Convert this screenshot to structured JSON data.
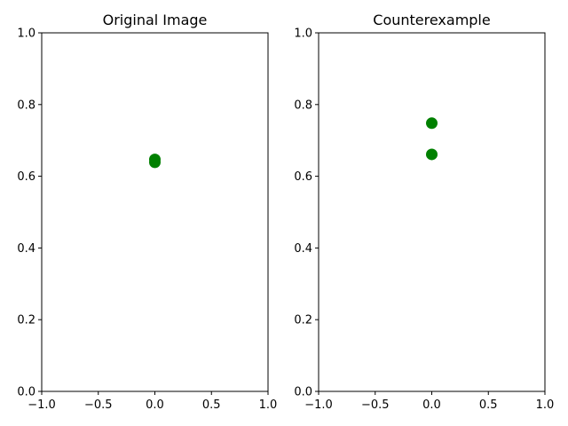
{
  "chart_data": [
    {
      "type": "scatter",
      "title": "Original Image",
      "xlim": [
        -1.0,
        1.0
      ],
      "ylim": [
        0.0,
        1.0
      ],
      "xticks": [
        "−1.0",
        "−0.5",
        "0.0",
        "0.5",
        "1.0"
      ],
      "yticks": [
        "0.0",
        "0.2",
        "0.4",
        "0.6",
        "0.8",
        "1.0"
      ],
      "grid": false,
      "color": "#008000",
      "points": [
        {
          "x": 0.0,
          "y": 0.647
        },
        {
          "x": 0.0,
          "y": 0.639
        }
      ]
    },
    {
      "type": "scatter",
      "title": "Counterexample",
      "xlim": [
        -1.0,
        1.0
      ],
      "ylim": [
        0.0,
        1.0
      ],
      "xticks": [
        "−1.0",
        "−0.5",
        "0.0",
        "0.5",
        "1.0"
      ],
      "yticks": [
        "0.0",
        "0.2",
        "0.4",
        "0.6",
        "0.8",
        "1.0"
      ],
      "grid": false,
      "color": "#008000",
      "points": [
        {
          "x": 0.0,
          "y": 0.748
        },
        {
          "x": 0.0,
          "y": 0.661
        }
      ]
    }
  ]
}
